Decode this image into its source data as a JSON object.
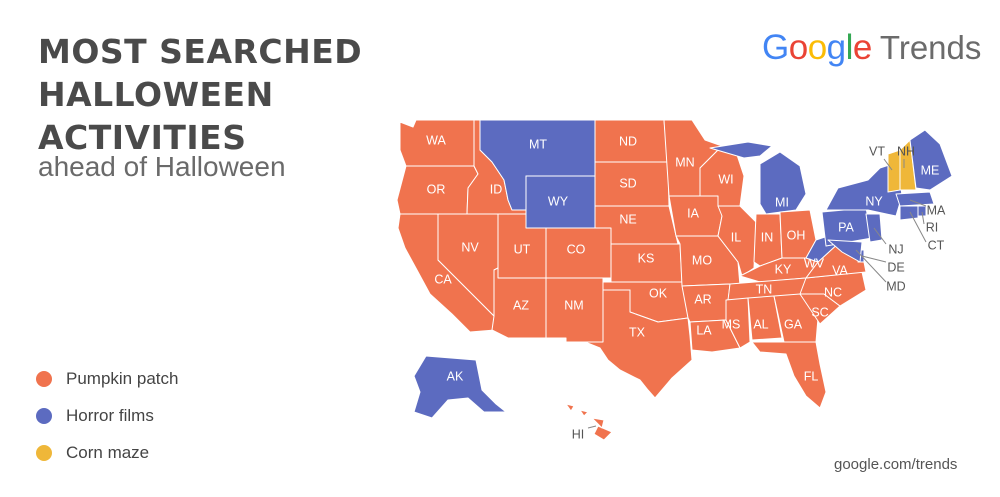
{
  "title_lines": [
    "MOST SEARCHED",
    "HALLOWEEN",
    "ACTIVITIES"
  ],
  "subtitle": "ahead of Halloween",
  "brand": {
    "google": "Google",
    "trends": "Trends"
  },
  "legend": [
    {
      "label": "Pumpkin patch",
      "color": "#f0734e"
    },
    {
      "label": "Horror films",
      "color": "#5c6bc0"
    },
    {
      "label": "Corn maze",
      "color": "#efb739"
    }
  ],
  "source": "google.com/trends",
  "colors": {
    "pumpkin": "#f0734e",
    "horror": "#5c6bc0",
    "corn": "#efb739",
    "google_blue": "#4285f4",
    "google_red": "#ea4335",
    "google_yellow": "#fbbc05",
    "google_green": "#34a853"
  },
  "states": {
    "WA": "Pumpkin patch",
    "OR": "Pumpkin patch",
    "CA": "Pumpkin patch",
    "ID": "Pumpkin patch",
    "NV": "Pumpkin patch",
    "MT": "Horror films",
    "WY": "Horror films",
    "UT": "Pumpkin patch",
    "CO": "Pumpkin patch",
    "AZ": "Pumpkin patch",
    "NM": "Pumpkin patch",
    "ND": "Pumpkin patch",
    "SD": "Pumpkin patch",
    "NE": "Pumpkin patch",
    "KS": "Pumpkin patch",
    "OK": "Pumpkin patch",
    "TX": "Pumpkin patch",
    "MN": "Pumpkin patch",
    "IA": "Pumpkin patch",
    "MO": "Pumpkin patch",
    "AR": "Pumpkin patch",
    "LA": "Pumpkin patch",
    "WI": "Pumpkin patch",
    "IL": "Pumpkin patch",
    "MI": "Horror films",
    "IN": "Pumpkin patch",
    "OH": "Pumpkin patch",
    "KY": "Pumpkin patch",
    "TN": "Pumpkin patch",
    "MS": "Pumpkin patch",
    "AL": "Pumpkin patch",
    "GA": "Pumpkin patch",
    "FL": "Pumpkin patch",
    "SC": "Pumpkin patch",
    "NC": "Pumpkin patch",
    "VA": "Pumpkin patch",
    "WV": "Horror films",
    "PA": "Horror films",
    "NY": "Horror films",
    "VT": "Corn maze",
    "NH": "Corn maze",
    "ME": "Horror films",
    "MA": "Horror films",
    "RI": "Horror films",
    "CT": "Horror films",
    "NJ": "Horror films",
    "DE": "Horror films",
    "MD": "Horror films",
    "AK": "Horror films",
    "HI": "Pumpkin patch"
  }
}
